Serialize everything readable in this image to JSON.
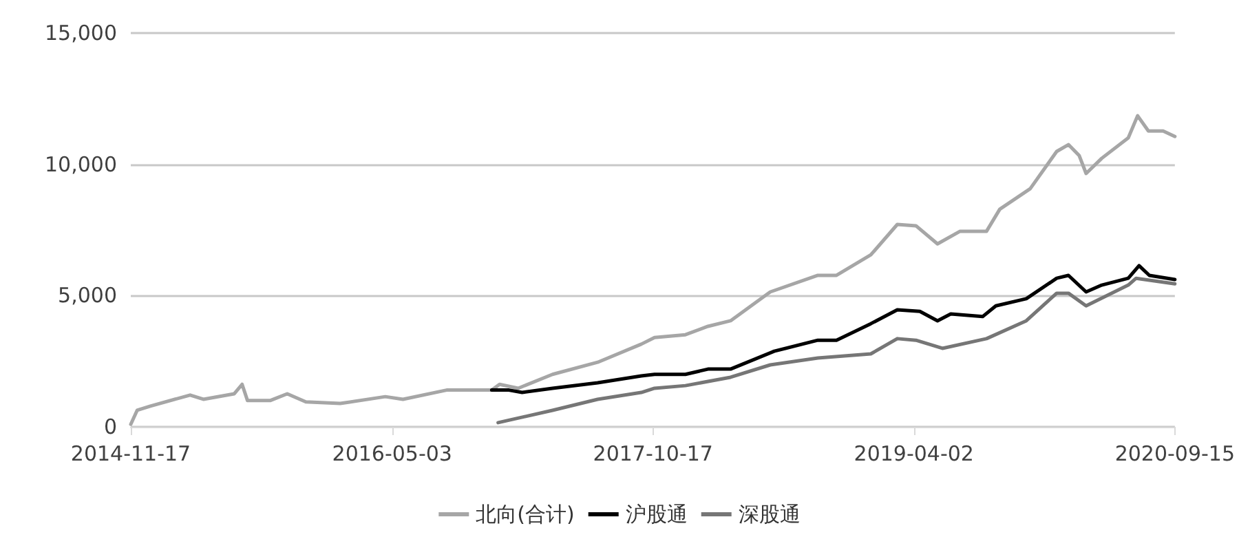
{
  "chart_data": {
    "type": "line",
    "legend": "bottom",
    "grid": "y",
    "marker": "none",
    "line_style": "solid",
    "xlim": [
      "2014-11-17",
      "2020-09-15"
    ],
    "xticks": [
      "2014-11-17",
      "2016-05-03",
      "2017-10-17",
      "2019-04-02",
      "2020-09-15"
    ],
    "ylim": [
      0,
      15000
    ],
    "yticks": [
      {
        "value": 0,
        "label": "0"
      },
      {
        "value": 5000,
        "label": "5,000"
      },
      {
        "value": 10000,
        "label": "10,000"
      },
      {
        "value": 15000,
        "label": "15,000"
      }
    ],
    "series": [
      {
        "name": "北向(合计)",
        "color": "#a6a6a6",
        "x": [
          "2014-11-17",
          "2014-11-30",
          "2014-12-27",
          "2015-03-18",
          "2015-04-14",
          "2015-06-16",
          "2015-07-02",
          "2015-07-13",
          "2015-08-28",
          "2015-10-02",
          "2015-11-09",
          "2016-01-18",
          "2016-04-19",
          "2016-05-25",
          "2016-08-22",
          "2016-11-22",
          "2016-12-08",
          "2017-01-15",
          "2017-03-26",
          "2017-06-26",
          "2017-09-23",
          "2017-10-20",
          "2017-12-22",
          "2018-02-06",
          "2018-03-24",
          "2018-06-13",
          "2018-09-18",
          "2018-10-26",
          "2019-01-04",
          "2019-02-27",
          "2019-04-06",
          "2019-05-20",
          "2019-07-05",
          "2019-08-28",
          "2019-09-24",
          "2019-11-25",
          "2020-01-18",
          "2020-02-11",
          "2020-03-04",
          "2020-03-18",
          "2020-04-19",
          "2020-06-12",
          "2020-07-01",
          "2020-07-23",
          "2020-08-22",
          "2020-09-15"
        ],
        "values": [
          100,
          630,
          790,
          1210,
          1050,
          1260,
          1620,
          1000,
          1000,
          1260,
          950,
          890,
          1150,
          1050,
          1400,
          1400,
          1620,
          1470,
          2000,
          2460,
          3150,
          3400,
          3510,
          3830,
          4040,
          5140,
          5770,
          5770,
          6550,
          7710,
          7660,
          6970,
          7450,
          7450,
          8290,
          9070,
          10490,
          10750,
          10330,
          9650,
          10230,
          11010,
          11850,
          11270,
          11270,
          11060
        ]
      },
      {
        "name": "沪股通",
        "color": "#000000",
        "x": [
          "2016-11-22",
          "2016-12-27",
          "2017-01-23",
          "2017-03-26",
          "2017-06-26",
          "2017-09-23",
          "2017-10-20",
          "2017-12-22",
          "2018-02-06",
          "2018-03-24",
          "2018-06-21",
          "2018-09-18",
          "2018-10-26",
          "2019-01-04",
          "2019-02-27",
          "2019-04-14",
          "2019-05-20",
          "2019-06-16",
          "2019-08-20",
          "2019-09-16",
          "2019-11-17",
          "2020-01-18",
          "2020-02-11",
          "2020-03-18",
          "2020-04-19",
          "2020-06-12",
          "2020-07-04",
          "2020-07-25",
          "2020-09-15"
        ],
        "values": [
          1400,
          1400,
          1310,
          1470,
          1680,
          1940,
          2000,
          2000,
          2200,
          2200,
          2880,
          3300,
          3300,
          3930,
          4460,
          4400,
          4040,
          4300,
          4200,
          4610,
          4880,
          5660,
          5770,
          5140,
          5400,
          5660,
          6140,
          5770,
          5610
        ]
      },
      {
        "name": "深股通",
        "color": "#767676",
        "x": [
          "2016-12-05",
          "2017-03-26",
          "2017-06-26",
          "2017-09-23",
          "2017-10-20",
          "2017-12-22",
          "2018-03-24",
          "2018-06-13",
          "2018-09-18",
          "2019-01-04",
          "2019-02-27",
          "2019-04-06",
          "2019-05-30",
          "2019-08-28",
          "2019-11-17",
          "2020-01-18",
          "2020-02-11",
          "2020-03-18",
          "2020-06-12",
          "2020-06-28",
          "2020-09-15"
        ],
        "values": [
          160,
          630,
          1050,
          1310,
          1470,
          1570,
          1890,
          2360,
          2620,
          2780,
          3360,
          3300,
          2990,
          3360,
          4040,
          5090,
          5090,
          4610,
          5400,
          5660,
          5450
        ]
      }
    ]
  }
}
